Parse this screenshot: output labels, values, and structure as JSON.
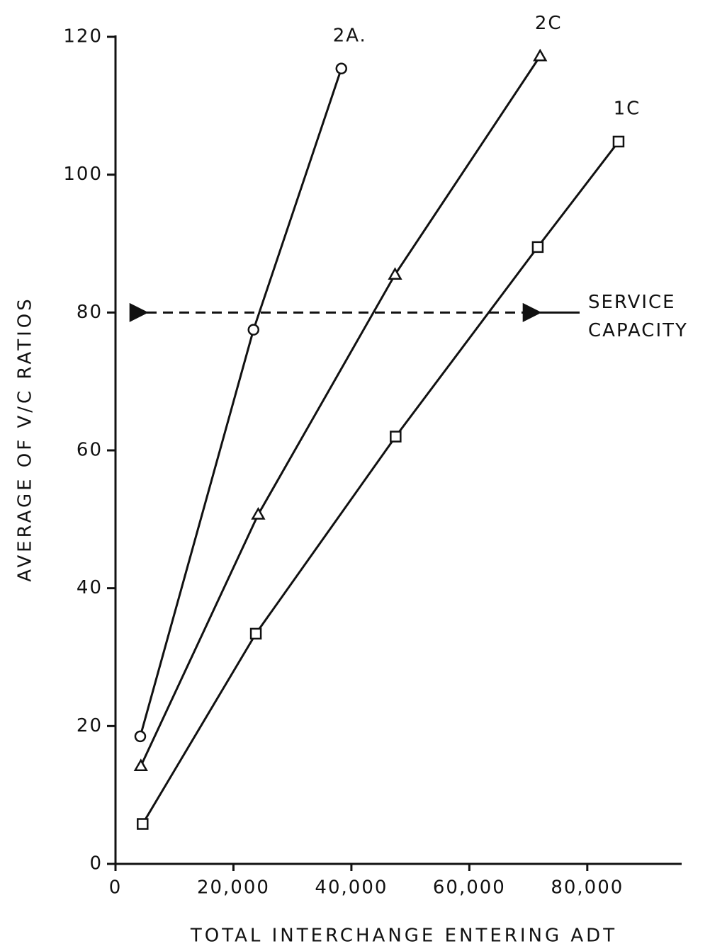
{
  "chart_data": {
    "type": "line",
    "xlabel": "TOTAL INTERCHANGE ENTERING ADT",
    "ylabel": "AVERAGE OF V/C RATIOS",
    "xlim": [
      0,
      96000
    ],
    "ylim": [
      0,
      120
    ],
    "xticks": [
      0,
      {
        "value": 20000,
        "label": "20,000"
      },
      {
        "value": 40000,
        "label": "40,000"
      },
      {
        "value": 60000,
        "label": "60,000"
      },
      {
        "value": 80000,
        "label": "80,000"
      }
    ],
    "yticks": [
      0,
      20,
      40,
      60,
      80,
      100,
      120
    ],
    "grid": false,
    "series": [
      {
        "name": "2A.",
        "color": "#111111",
        "marker": "circle",
        "x": [
          4200,
          23400,
          38300
        ],
        "values": [
          18.5,
          77.5,
          115.4
        ]
      },
      {
        "name": "2C",
        "color": "#111111",
        "marker": "triangle",
        "x": [
          4300,
          24200,
          47400,
          72000
        ],
        "values": [
          14.2,
          50.7,
          85.5,
          117.2
        ]
      },
      {
        "name": "1C",
        "color": "#111111",
        "marker": "square",
        "x": [
          4600,
          23800,
          47500,
          71600,
          85300
        ],
        "values": [
          5.8,
          33.4,
          62.0,
          89.5,
          104.8
        ]
      }
    ],
    "reference_line": {
      "value": 80,
      "label": [
        "SERVICE",
        "CAPACITY"
      ]
    }
  }
}
